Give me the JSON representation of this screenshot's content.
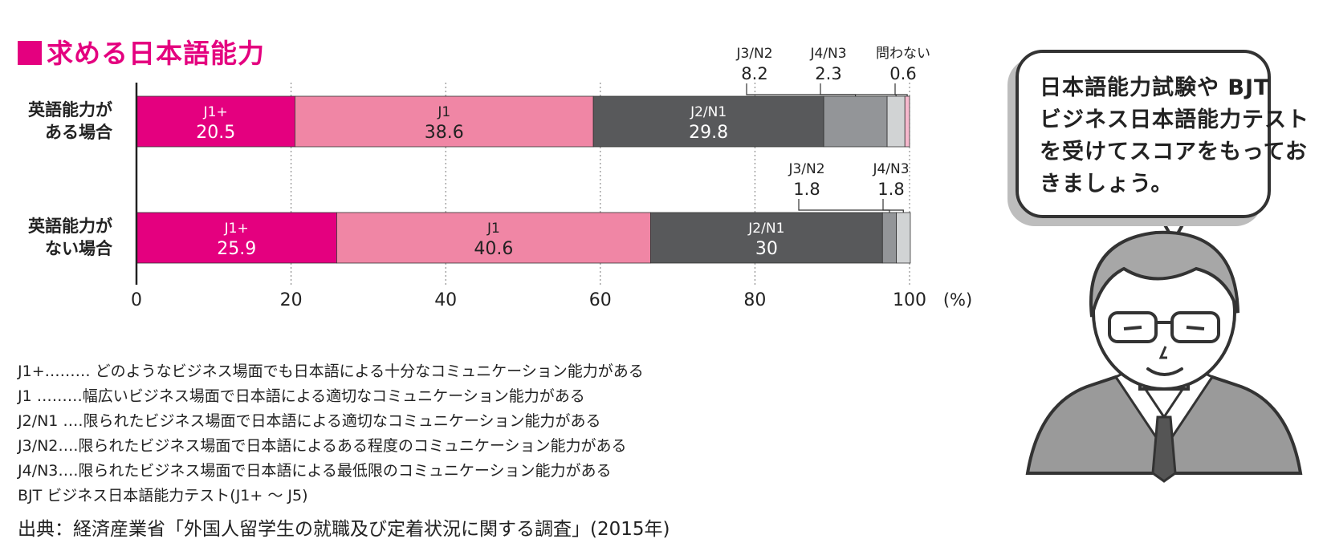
{
  "title": "求める日本語能力",
  "chart_data": {
    "type": "bar",
    "orientation": "horizontal-stacked",
    "categories": [
      "英語能力がある場合",
      "英語能力がない場合"
    ],
    "category_lines": [
      [
        "英語能力が",
        "ある場合"
      ],
      [
        "英語能力が",
        "ない場合"
      ]
    ],
    "series": [
      {
        "name": "J1+",
        "values": [
          20.5,
          25.9
        ],
        "color": "#e4007f"
      },
      {
        "name": "J1",
        "values": [
          38.6,
          40.6
        ],
        "color": "#f086a5"
      },
      {
        "name": "J2/N1",
        "values": [
          29.8,
          30.0
        ],
        "color": "#58595b"
      },
      {
        "name": "J3/N2",
        "values": [
          8.2,
          1.8
        ],
        "color": "#939598"
      },
      {
        "name": "J4/N3",
        "values": [
          2.3,
          1.8
        ],
        "color": "#d1d3d4"
      },
      {
        "name": "問わない",
        "values": [
          0.6,
          null
        ],
        "color": "#f6b8cd"
      }
    ],
    "xlim": [
      0,
      100
    ],
    "xticks": [
      "0",
      "20",
      "40",
      "60",
      "80",
      "100"
    ],
    "unit_label": "(%)",
    "grid": "dotted vertical",
    "callouts": [
      {
        "row": 0,
        "series": "J3/N2",
        "label": "J3/N2",
        "value": "8.2"
      },
      {
        "row": 0,
        "series": "J4/N3",
        "label": "J4/N3",
        "value": "2.3"
      },
      {
        "row": 0,
        "series": "問わない",
        "label": "問わない",
        "value": "0.6"
      },
      {
        "row": 1,
        "series": "J3/N2",
        "label": "J3/N2",
        "value": "1.8"
      },
      {
        "row": 1,
        "series": "J4/N3",
        "label": "J4/N3",
        "value": "1.8"
      }
    ]
  },
  "notes": [
    "J1+……… どのようなビジネス場面でも日本語による十分なコミュニケーション能力がある",
    "J1 ………幅広いビジネス場面で日本語による適切なコミュニケーション能力がある",
    "J2/N1 ….限られたビジネス場面で日本語による適切なコミュニケーション能力がある",
    "J3/N2….限られたビジネス場面で日本語によるある程度のコミュニケーション能力がある",
    "J4/N3….限られたビジネス場面で日本語による最低限のコミュニケーション能力がある",
    "BJT ビジネス日本語能力テスト(J1+ 〜 J5)"
  ],
  "source": "出典：経済産業省「外国人留学生の就職及び定着状況に関する調査」(2015年)",
  "speech_bubble": {
    "lines": [
      "日本語能力試験や BJT",
      "ビジネス日本語能力テスト",
      "を受けてスコアをもってお",
      "きましょう。"
    ]
  }
}
